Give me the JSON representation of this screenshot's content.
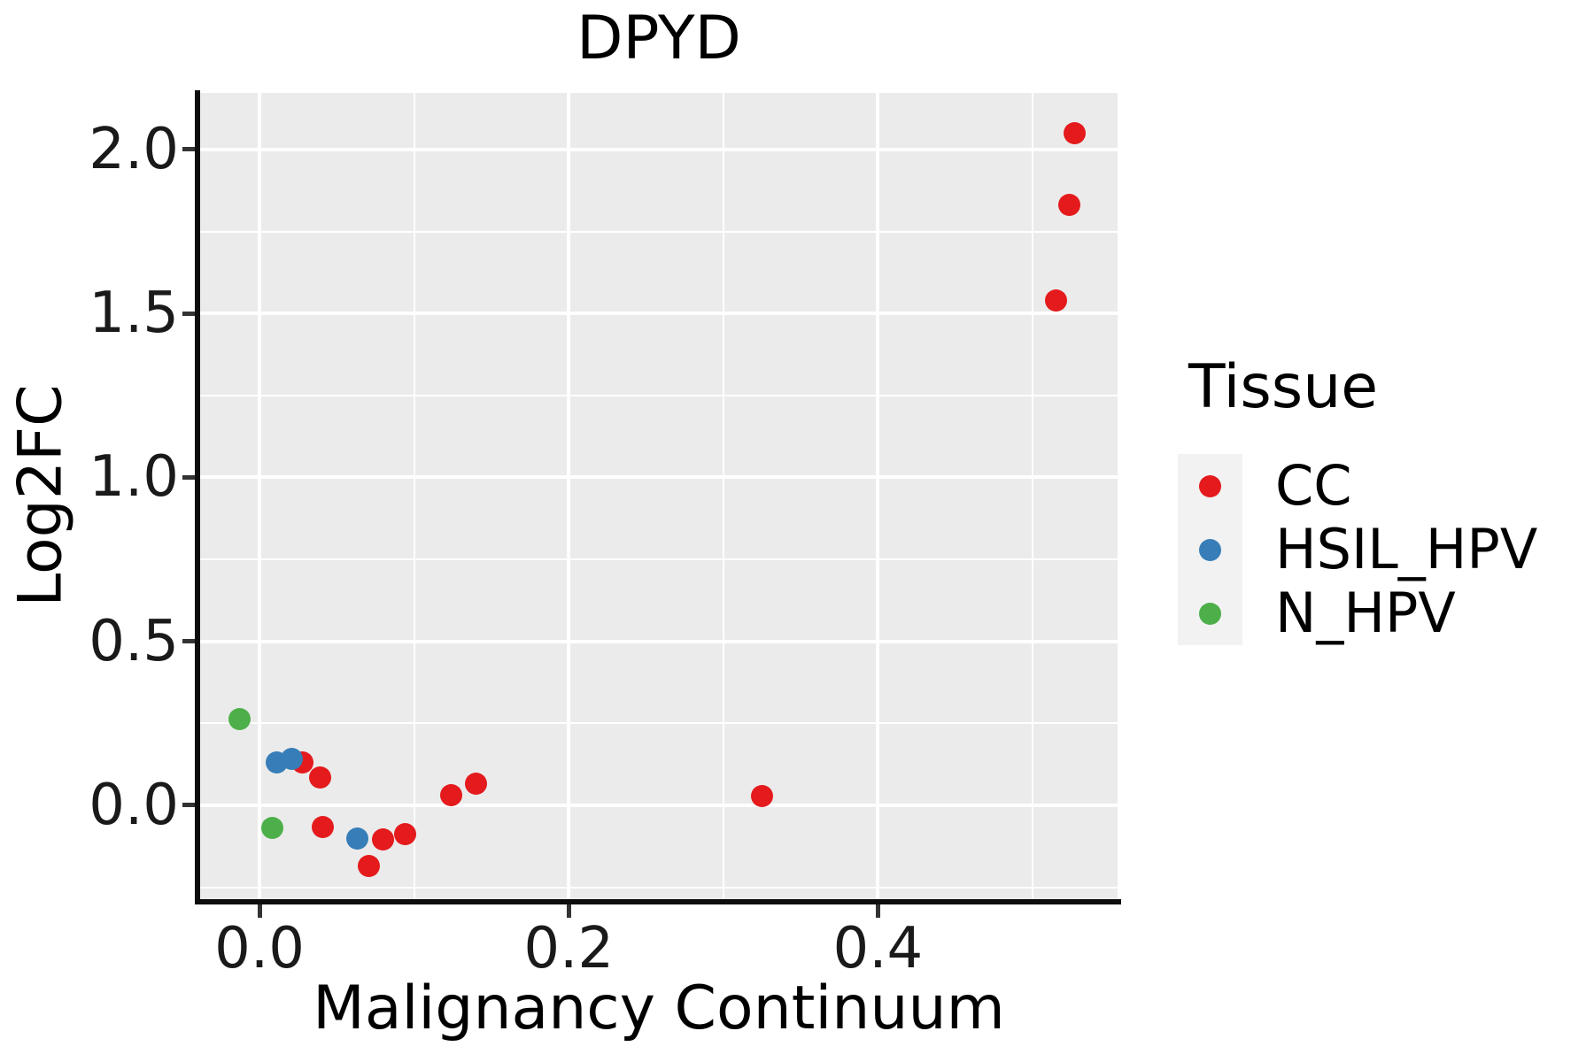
{
  "chart_data": {
    "type": "scatter",
    "title": "DPYD",
    "xlabel": "Malignancy Continuum",
    "ylabel": "Log2FC",
    "xlim": [
      -0.0384,
      0.555
    ],
    "ylim": [
      -0.2888,
      2.1727
    ],
    "grid": "major+minor white on gray panel",
    "x_ticks": {
      "values": [
        0.0,
        0.2,
        0.4
      ],
      "labels": [
        "0.0",
        "0.2",
        "0.4"
      ],
      "minor": [
        0.1,
        0.3,
        0.5
      ]
    },
    "y_ticks": {
      "values": [
        0.0,
        0.5,
        1.0,
        1.5,
        2.0
      ],
      "labels": [
        "0.0",
        "0.5",
        "1.0",
        "1.5",
        "2.0"
      ],
      "minor": [
        -0.25,
        0.25,
        0.75,
        1.25,
        1.75
      ]
    },
    "legend": {
      "title": "Tissue",
      "position": "right"
    },
    "series": [
      {
        "name": "CC",
        "color": "#E41A1C",
        "points": [
          [
            0.028,
            0.132
          ],
          [
            0.039,
            0.086
          ],
          [
            0.041,
            -0.065
          ],
          [
            0.071,
            -0.186
          ],
          [
            0.08,
            -0.105
          ],
          [
            0.094,
            -0.089
          ],
          [
            0.124,
            0.032
          ],
          [
            0.14,
            0.067
          ],
          [
            0.325,
            0.027
          ],
          [
            0.515,
            1.54
          ],
          [
            0.524,
            1.83
          ],
          [
            0.527,
            2.05
          ]
        ]
      },
      {
        "name": "HSIL_HPV",
        "color": "#377EB8",
        "points": [
          [
            0.011,
            0.13
          ],
          [
            0.021,
            0.143
          ],
          [
            0.063,
            -0.1
          ]
        ]
      },
      {
        "name": "N_HPV",
        "color": "#4DAF4A",
        "points": [
          [
            -0.013,
            0.264
          ],
          [
            0.008,
            -0.07
          ]
        ]
      }
    ]
  },
  "styles": {
    "panel_bg": "#EBEBEB",
    "grid_color": "#FFFFFF",
    "axis_line_color": "#0d0d0d",
    "tick_color": "#333333",
    "text_color": "#000000",
    "legend_key_bg": "#F2F2F2"
  }
}
